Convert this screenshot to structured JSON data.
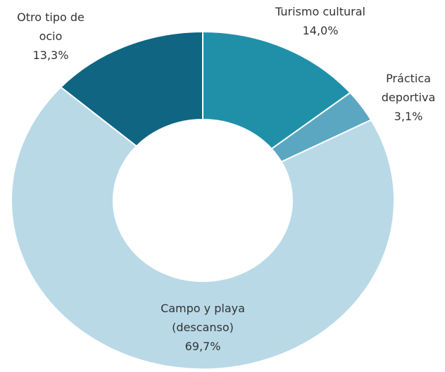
{
  "chart_data": {
    "type": "donut",
    "categories": [
      "Turismo cultural",
      "Práctica deportiva",
      "Campo y playa (descanso)",
      "Otro tipo de ocio"
    ],
    "values": [
      14.0,
      3.1,
      69.7,
      13.3
    ],
    "value_labels": [
      "14,0%",
      "3,1%",
      "69,7%",
      "13,3%"
    ],
    "colors": [
      "#2090a9",
      "#5ba7c1",
      "#b9d9e7",
      "#0f6582"
    ]
  }
}
